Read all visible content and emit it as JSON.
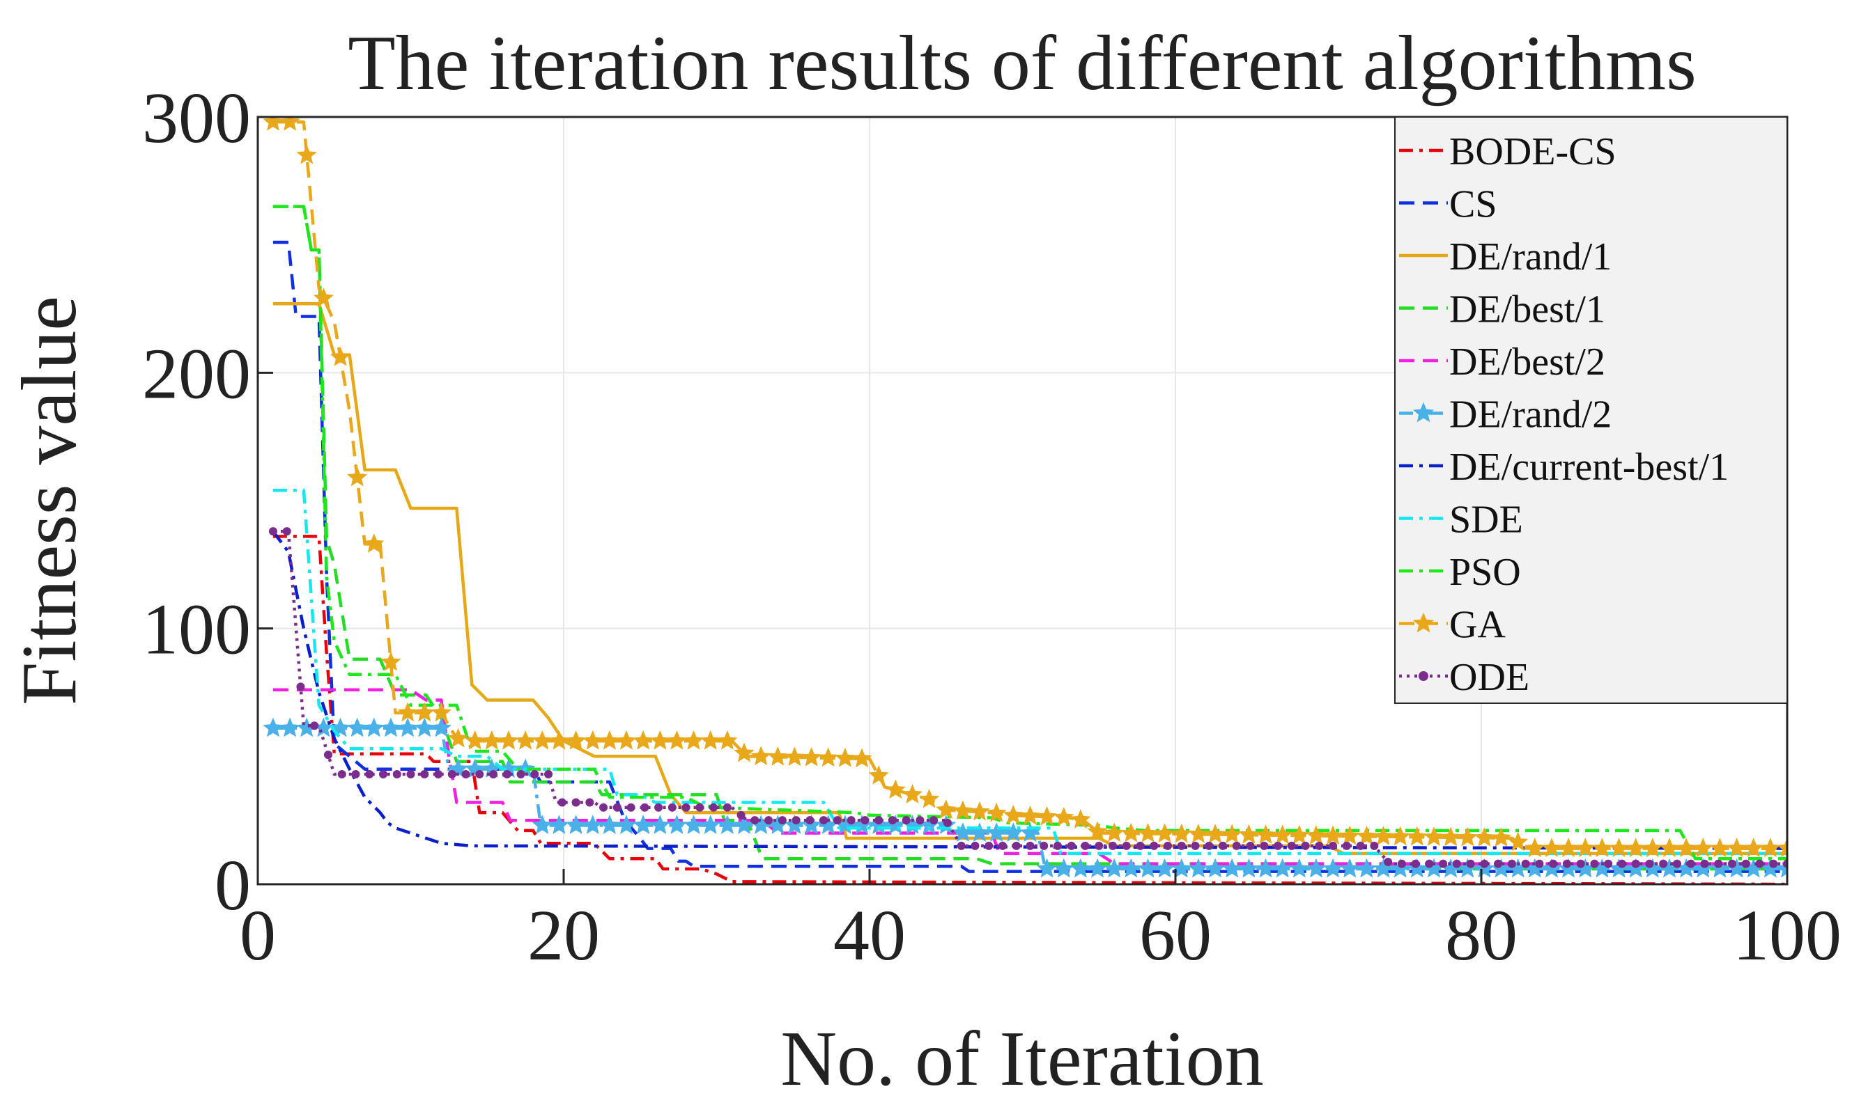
{
  "chart_data": {
    "type": "line",
    "title": "The iteration results of different algorithms",
    "xlabel": "No.  of  Iteration",
    "ylabel": "Fitness value",
    "xlim": [
      0,
      100
    ],
    "ylim": [
      0,
      300
    ],
    "xticks": [
      0,
      20,
      40,
      60,
      80,
      100
    ],
    "yticks": [
      0,
      100,
      200,
      300
    ],
    "grid": true,
    "legend_position": "top-right",
    "series": [
      {
        "name": "BODE-CS",
        "color": "#e8000b",
        "dash": "dashdot",
        "marker": "none",
        "points": [
          [
            1,
            136
          ],
          [
            4,
            136
          ],
          [
            4.5,
            90
          ],
          [
            5,
            51
          ],
          [
            11,
            51
          ],
          [
            11.5,
            48
          ],
          [
            14,
            48
          ],
          [
            14.5,
            28
          ],
          [
            16,
            28
          ],
          [
            17,
            21
          ],
          [
            18,
            21
          ],
          [
            18.5,
            16
          ],
          [
            22,
            16
          ],
          [
            23,
            10
          ],
          [
            26,
            10
          ],
          [
            26.5,
            6
          ],
          [
            29,
            6
          ],
          [
            30,
            4
          ],
          [
            31,
            1
          ],
          [
            100,
            0
          ]
        ]
      },
      {
        "name": "CS",
        "color": "#1030e0",
        "dash": "dashed",
        "marker": "none",
        "points": [
          [
            1,
            251
          ],
          [
            2,
            251
          ],
          [
            2.5,
            222
          ],
          [
            4,
            222
          ],
          [
            4.5,
            120
          ],
          [
            5,
            55
          ],
          [
            7,
            45
          ],
          [
            18,
            45
          ],
          [
            18.5,
            40
          ],
          [
            23,
            40
          ],
          [
            24,
            25
          ],
          [
            25,
            18
          ],
          [
            25.5,
            14
          ],
          [
            27,
            14
          ],
          [
            27.5,
            9
          ],
          [
            28,
            9
          ],
          [
            28.5,
            7
          ],
          [
            46,
            7
          ],
          [
            46.5,
            5
          ],
          [
            100,
            5
          ]
        ]
      },
      {
        "name": "DE/rand/1",
        "color": "#e6a817",
        "dash": "solid",
        "marker": "none",
        "points": [
          [
            1,
            227
          ],
          [
            4,
            227
          ],
          [
            5,
            207
          ],
          [
            6,
            207
          ],
          [
            7,
            162
          ],
          [
            9,
            162
          ],
          [
            10,
            147
          ],
          [
            13,
            147
          ],
          [
            14,
            78
          ],
          [
            15,
            72
          ],
          [
            18,
            72
          ],
          [
            19,
            65
          ],
          [
            20,
            56
          ],
          [
            22,
            50
          ],
          [
            26,
            50
          ],
          [
            27,
            35
          ],
          [
            28,
            28
          ],
          [
            38,
            28
          ],
          [
            38.5,
            18
          ],
          [
            55,
            18
          ],
          [
            56,
            15
          ],
          [
            70,
            15
          ],
          [
            71,
            12
          ],
          [
            100,
            12
          ]
        ]
      },
      {
        "name": "DE/best/1",
        "color": "#22dd22",
        "dash": "dashed",
        "marker": "none",
        "points": [
          [
            1,
            265
          ],
          [
            3,
            265
          ],
          [
            3.5,
            248
          ],
          [
            4,
            248
          ],
          [
            4.5,
            135
          ],
          [
            5,
            125
          ],
          [
            6,
            88
          ],
          [
            8,
            88
          ],
          [
            9,
            74
          ],
          [
            11,
            74
          ],
          [
            12,
            65
          ],
          [
            13,
            48
          ],
          [
            16,
            48
          ],
          [
            16.5,
            40
          ],
          [
            22,
            40
          ],
          [
            22.5,
            35
          ],
          [
            30,
            35
          ],
          [
            30.5,
            25
          ],
          [
            32,
            25
          ],
          [
            33,
            10
          ],
          [
            47,
            10
          ],
          [
            48,
            8
          ],
          [
            75,
            8
          ],
          [
            76,
            6
          ],
          [
            100,
            6
          ]
        ]
      },
      {
        "name": "DE/best/2",
        "color": "#f020e0",
        "dash": "dashed",
        "marker": "none",
        "points": [
          [
            1,
            76
          ],
          [
            10,
            76
          ],
          [
            11,
            72
          ],
          [
            12,
            72
          ],
          [
            12.5,
            50
          ],
          [
            13,
            32
          ],
          [
            16,
            32
          ],
          [
            16.5,
            25
          ],
          [
            33,
            25
          ],
          [
            34,
            20
          ],
          [
            48,
            20
          ],
          [
            48.5,
            12
          ],
          [
            55,
            12
          ],
          [
            56,
            8
          ],
          [
            100,
            8
          ]
        ]
      },
      {
        "name": "DE/rand/2",
        "color": "#4ab0e8",
        "dash": "dashdot",
        "marker": "star",
        "points": [
          [
            1,
            61
          ],
          [
            12,
            61
          ],
          [
            12.5,
            45
          ],
          [
            18,
            45
          ],
          [
            18.5,
            23
          ],
          [
            45,
            23
          ],
          [
            45.5,
            20
          ],
          [
            51,
            20
          ],
          [
            51.5,
            6
          ],
          [
            100,
            6
          ]
        ]
      },
      {
        "name": "DE/current-best/1",
        "color": "#0a1ecc",
        "dash": "dashdot",
        "marker": "none",
        "points": [
          [
            1,
            138
          ],
          [
            2,
            130
          ],
          [
            3,
            100
          ],
          [
            4,
            75
          ],
          [
            5,
            57
          ],
          [
            6,
            45
          ],
          [
            7,
            34
          ],
          [
            8,
            28
          ],
          [
            8.5,
            24
          ],
          [
            9,
            22
          ],
          [
            10,
            20
          ],
          [
            11,
            18
          ],
          [
            12,
            16
          ],
          [
            14,
            15
          ],
          [
            100,
            14
          ]
        ]
      },
      {
        "name": "SDE",
        "color": "#12e8f0",
        "dash": "dashdot",
        "marker": "none",
        "points": [
          [
            1,
            154
          ],
          [
            3,
            154
          ],
          [
            4,
            70
          ],
          [
            5,
            60
          ],
          [
            6,
            53
          ],
          [
            12,
            53
          ],
          [
            13,
            50
          ],
          [
            15,
            50
          ],
          [
            16,
            45
          ],
          [
            23,
            45
          ],
          [
            23.5,
            35
          ],
          [
            25,
            35
          ],
          [
            26,
            32
          ],
          [
            37,
            32
          ],
          [
            38,
            22
          ],
          [
            52,
            22
          ],
          [
            52.5,
            12
          ],
          [
            100,
            12
          ]
        ]
      },
      {
        "name": "PSO",
        "color": "#1ce81c",
        "dash": "dashdot",
        "marker": "none",
        "points": [
          [
            1,
            265
          ],
          [
            3,
            265
          ],
          [
            3.5,
            248
          ],
          [
            4,
            248
          ],
          [
            4.5,
            120
          ],
          [
            5,
            95
          ],
          [
            6,
            82
          ],
          [
            9,
            82
          ],
          [
            10,
            70
          ],
          [
            13,
            70
          ],
          [
            14,
            52
          ],
          [
            16,
            52
          ],
          [
            17,
            45
          ],
          [
            22,
            45
          ],
          [
            23,
            34
          ],
          [
            28,
            34
          ],
          [
            29,
            31
          ],
          [
            30,
            30
          ],
          [
            39,
            28
          ],
          [
            40,
            27
          ],
          [
            48,
            26
          ],
          [
            49,
            24
          ],
          [
            55,
            23
          ],
          [
            56,
            22
          ],
          [
            58,
            21
          ],
          [
            93,
            21
          ],
          [
            94,
            10
          ],
          [
            100,
            10
          ]
        ]
      },
      {
        "name": "GA",
        "color": "#e8a81a",
        "dash": "dashed",
        "marker": "star",
        "points": [
          [
            1,
            298
          ],
          [
            3,
            298
          ],
          [
            4,
            233
          ],
          [
            5,
            220
          ],
          [
            6,
            185
          ],
          [
            7,
            133
          ],
          [
            8,
            133
          ],
          [
            9,
            67
          ],
          [
            12,
            67
          ],
          [
            13,
            57
          ],
          [
            14,
            56
          ],
          [
            31,
            56
          ],
          [
            32,
            50
          ],
          [
            40,
            49
          ],
          [
            41,
            38
          ],
          [
            44,
            33
          ],
          [
            45,
            29
          ],
          [
            48,
            28
          ],
          [
            49,
            27
          ],
          [
            53,
            26
          ],
          [
            54,
            25
          ],
          [
            55,
            20
          ],
          [
            82,
            18
          ],
          [
            83,
            14
          ],
          [
            100,
            14
          ]
        ]
      },
      {
        "name": "ODE",
        "color": "#7b2d8e",
        "dash": "dotted",
        "marker": "dot",
        "points": [
          [
            1,
            138
          ],
          [
            2,
            138
          ],
          [
            2.5,
            100
          ],
          [
            3,
            62
          ],
          [
            4,
            62
          ],
          [
            5,
            43
          ],
          [
            19,
            43
          ],
          [
            19.5,
            32
          ],
          [
            22,
            32
          ],
          [
            22.5,
            30
          ],
          [
            31,
            30
          ],
          [
            32,
            25
          ],
          [
            45,
            25
          ],
          [
            46,
            15
          ],
          [
            73,
            15
          ],
          [
            74,
            8
          ],
          [
            100,
            8
          ]
        ]
      }
    ]
  }
}
